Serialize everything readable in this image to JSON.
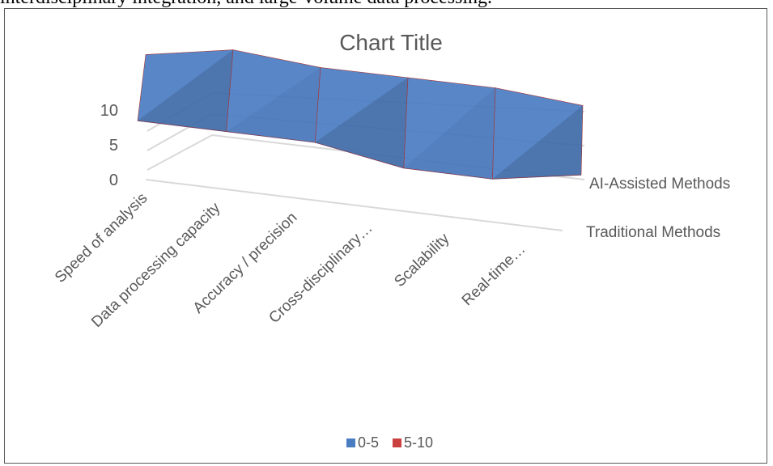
{
  "page": {
    "top_text": "interdisciplinary integration, and large-volume data processing."
  },
  "chart_data": {
    "type": "surface",
    "title": "Chart Title",
    "categories": [
      "Speed of analysis",
      "Data processing capacity",
      "Accuracy / precision",
      "Cross-disciplinary…",
      "Scalability",
      "Real-time…"
    ],
    "series": [
      {
        "name": "Traditional Methods",
        "values": [
          4,
          4,
          4,
          2,
          2,
          4
        ]
      },
      {
        "name": "AI-Assisted Methods",
        "values": [
          8,
          10,
          9,
          9,
          9,
          8
        ]
      }
    ],
    "zlim": [
      0,
      10
    ],
    "z_ticks": [
      "0",
      "5",
      "10"
    ],
    "legend": [
      {
        "label": "0-5",
        "color": "#4a7cc2"
      },
      {
        "label": "5-10",
        "color": "#c9403f"
      }
    ],
    "legend_position": "bottom",
    "colors": {
      "band_low": "#4a7cc2",
      "band_high": "#c9403f",
      "grid": "#d9d9d9",
      "text": "#595959"
    }
  }
}
